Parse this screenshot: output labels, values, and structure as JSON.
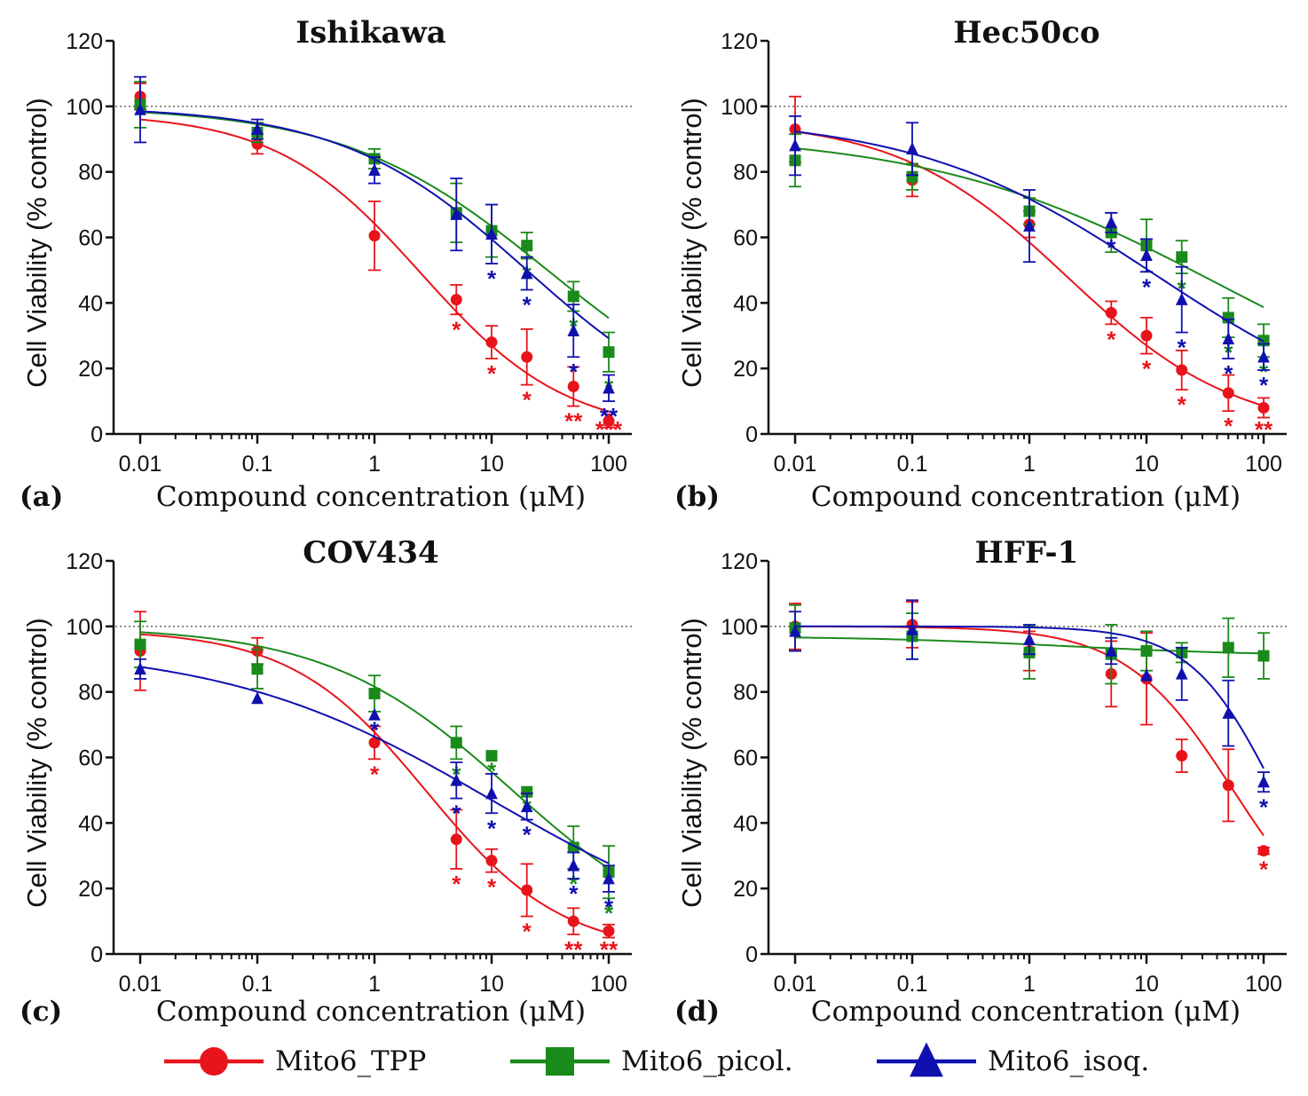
{
  "figure": {
    "x_label": "Compound concentration (μM)",
    "y_label": "Cell Viability (% control)",
    "x_tick_labels": [
      "0.01",
      "0.1",
      "1",
      "10",
      "100"
    ],
    "y_tick_labels": [
      "0",
      "20",
      "40",
      "60",
      "80",
      "100",
      "120"
    ]
  },
  "legend": [
    {
      "label": "Mito6_TPP",
      "color": "#e8141b",
      "marker": "circle"
    },
    {
      "label": "Mito6_picol.",
      "color": "#1a8a1a",
      "marker": "square"
    },
    {
      "label": "Mito6_isoq.",
      "color": "#1010b0",
      "marker": "triangle"
    }
  ],
  "chart_data": [
    {
      "type": "scatter",
      "panel": "(a)",
      "title": "Ishikawa",
      "xscale": "log",
      "xlim": [
        0.01,
        100
      ],
      "ylim": [
        0,
        120
      ],
      "reference_line": 100,
      "x": [
        0.01,
        0.1,
        1,
        5,
        10,
        20,
        50,
        100
      ],
      "series": [
        {
          "name": "Mito6_TPP",
          "values": [
            103,
            88.5,
            60.5,
            41,
            28,
            23.5,
            14.5,
            4
          ],
          "errors": [
            4,
            3,
            10.5,
            4.5,
            5,
            8.5,
            6,
            2
          ],
          "fit": {
            "top": 98,
            "bottom": 0,
            "ic50": 2.5,
            "hill": 0.7
          },
          "significance": [
            "",
            "",
            "",
            "*",
            "*",
            "*",
            "**",
            "***"
          ]
        },
        {
          "name": "Mito6_picol.",
          "values": [
            100.5,
            92,
            84,
            67.5,
            62,
            57.5,
            42,
            25
          ],
          "errors": [
            7,
            3,
            3,
            9,
            8,
            4,
            4.5,
            6
          ],
          "fit": {
            "top": 100,
            "bottom": 0,
            "ic50": 30,
            "hill": 0.5
          },
          "significance": [
            "",
            "",
            "",
            "",
            "",
            "*",
            "*",
            "*"
          ]
        },
        {
          "name": "Mito6_isoq.",
          "values": [
            99,
            93,
            80.5,
            67,
            61,
            49,
            31.5,
            14
          ],
          "errors": [
            10,
            3,
            4,
            11,
            9,
            5,
            8,
            4
          ],
          "fit": {
            "top": 100,
            "bottom": 0,
            "ic50": 20,
            "hill": 0.55
          },
          "significance": [
            "",
            "",
            "",
            "",
            "*",
            "*",
            "*",
            "**"
          ]
        }
      ]
    },
    {
      "type": "scatter",
      "panel": "(b)",
      "title": "Hec50co",
      "xscale": "log",
      "xlim": [
        0.01,
        100
      ],
      "ylim": [
        0,
        120
      ],
      "reference_line": 100,
      "x": [
        0.01,
        0.1,
        1,
        5,
        10,
        20,
        50,
        100
      ],
      "series": [
        {
          "name": "Mito6_TPP",
          "values": [
            93,
            77.5,
            64,
            37,
            30,
            19.5,
            12.5,
            8
          ],
          "errors": [
            10,
            5,
            4,
            3.5,
            5.5,
            6,
            5.5,
            3
          ],
          "fit": {
            "top": 96,
            "bottom": 0,
            "ic50": 2.1,
            "hill": 0.6
          },
          "significance": [
            "",
            "",
            "",
            "*",
            "*",
            "*",
            "*",
            "**"
          ]
        },
        {
          "name": "Mito6_picol.",
          "values": [
            83.5,
            78.5,
            68,
            61.5,
            57.5,
            54,
            35.5,
            28.5
          ],
          "errors": [
            8,
            4,
            4,
            6,
            8,
            5,
            6,
            5
          ],
          "fit": {
            "top": 92,
            "bottom": 0,
            "ic50": 40,
            "hill": 0.35
          },
          "significance": [
            "",
            "",
            "",
            "",
            "",
            "*",
            "*",
            "*"
          ]
        },
        {
          "name": "Mito6_isoq.",
          "values": [
            88,
            87,
            63.5,
            64.5,
            54.5,
            41,
            29,
            23.5
          ],
          "errors": [
            9,
            8,
            11,
            3,
            5,
            10,
            6,
            4
          ],
          "fit": {
            "top": 97,
            "bottom": 0,
            "ic50": 12,
            "hill": 0.42
          },
          "significance": [
            "",
            "",
            "",
            "*",
            "*",
            "*",
            "*",
            "*"
          ]
        }
      ]
    },
    {
      "type": "scatter",
      "panel": "(c)",
      "title": "COV434",
      "xscale": "log",
      "xlim": [
        0.01,
        100
      ],
      "ylim": [
        0,
        120
      ],
      "reference_line": 100,
      "x": [
        0.01,
        0.1,
        1,
        5,
        10,
        20,
        50,
        100
      ],
      "series": [
        {
          "name": "Mito6_TPP",
          "values": [
            92.5,
            92.5,
            64.5,
            35,
            28.5,
            19.5,
            10,
            7
          ],
          "errors": [
            12,
            4,
            5,
            9,
            3.5,
            8,
            4,
            2
          ],
          "fit": {
            "top": 99,
            "bottom": 0,
            "ic50": 2.8,
            "hill": 0.75
          },
          "significance": [
            "",
            "",
            "*",
            "*",
            "*",
            "*",
            "**",
            "**"
          ]
        },
        {
          "name": "Mito6_picol.",
          "values": [
            94.5,
            87,
            79.5,
            64.5,
            60.5,
            49.5,
            32.5,
            25
          ],
          "errors": [
            7,
            6,
            5.5,
            5,
            0,
            0,
            6.5,
            8
          ],
          "fit": {
            "top": 100,
            "bottom": 0,
            "ic50": 15,
            "hill": 0.55
          },
          "significance": [
            "",
            "",
            "",
            "*",
            "*",
            "*",
            "*",
            "*"
          ]
        },
        {
          "name": "Mito6_isoq.",
          "values": [
            87,
            78,
            73,
            53,
            49,
            45,
            27,
            23
          ],
          "errors": [
            3,
            0,
            0,
            5.5,
            6,
            4,
            4,
            4
          ],
          "fit": {
            "top": 94,
            "bottom": 0,
            "ic50": 10,
            "hill": 0.38
          },
          "significance": [
            "",
            "",
            "*",
            "*",
            "*",
            "*",
            "*",
            "*"
          ]
        }
      ]
    },
    {
      "type": "scatter",
      "panel": "(d)",
      "title": "HFF-1",
      "xscale": "log",
      "xlim": [
        0.01,
        100
      ],
      "ylim": [
        0,
        120
      ],
      "reference_line": 100,
      "x": [
        0.01,
        0.1,
        1,
        5,
        10,
        20,
        50,
        100
      ],
      "series": [
        {
          "name": "Mito6_TPP",
          "values": [
            100,
            100.5,
            92.5,
            85.5,
            84,
            60.5,
            51.5,
            31.5
          ],
          "errors": [
            7,
            7,
            6,
            10,
            14,
            5,
            11,
            1
          ],
          "fit": {
            "top": 100,
            "bottom": 0,
            "ic50": 55,
            "hill": 0.95
          },
          "significance": [
            "",
            "",
            "",
            "",
            "",
            "",
            "",
            "*"
          ]
        },
        {
          "name": "Mito6_picol.",
          "values": [
            99.5,
            97,
            92,
            91.5,
            92.5,
            92,
            93.5,
            91
          ],
          "errors": [
            7,
            7,
            8,
            9,
            6,
            3,
            9,
            7
          ],
          "fit": {
            "top": 97,
            "bottom": 91,
            "ic50": 2,
            "hill": 0.5
          },
          "significance": [
            "",
            "",
            "",
            "",
            "",
            "",
            "",
            ""
          ]
        },
        {
          "name": "Mito6_isoq.",
          "values": [
            98.5,
            99,
            96,
            92.5,
            85,
            85.5,
            73.5,
            52.5
          ],
          "errors": [
            6,
            9,
            4.5,
            4,
            0,
            8,
            10,
            3
          ],
          "fit": {
            "top": 100,
            "bottom": 0,
            "ic50": 125,
            "hill": 1.2
          },
          "significance": [
            "",
            "",
            "",
            "",
            "",
            "",
            "",
            "*"
          ]
        }
      ]
    }
  ]
}
